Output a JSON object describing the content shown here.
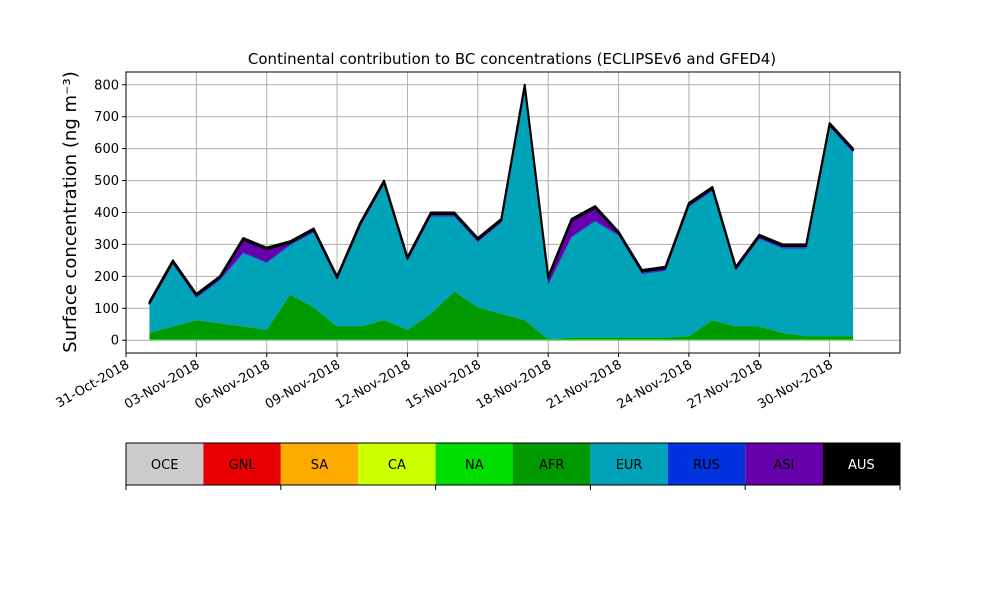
{
  "chart_data": {
    "type": "stacked_area",
    "title": "Continental contribution to BC concentrations (ECLIPSEv6 and GFED4)",
    "y_label": "Surface concentration (ng m⁻³)",
    "x": [
      "2018-11-01",
      "2018-11-02",
      "2018-11-03",
      "2018-11-04",
      "2018-11-05",
      "2018-11-06",
      "2018-11-07",
      "2018-11-08",
      "2018-11-09",
      "2018-11-10",
      "2018-11-11",
      "2018-11-12",
      "2018-11-13",
      "2018-11-14",
      "2018-11-15",
      "2018-11-16",
      "2018-11-17",
      "2018-11-18",
      "2018-11-19",
      "2018-11-20",
      "2018-11-21",
      "2018-11-22",
      "2018-11-23",
      "2018-11-24",
      "2018-11-25",
      "2018-11-26",
      "2018-11-27",
      "2018-11-28",
      "2018-11-29",
      "2018-11-30",
      "2018-12-01"
    ],
    "series": [
      {
        "name": "OCE",
        "color": "#cccccc",
        "values": [
          0,
          0,
          0,
          0,
          0,
          0,
          0,
          0,
          0,
          0,
          0,
          0,
          0,
          0,
          0,
          0,
          0,
          0,
          0,
          0,
          0,
          0,
          0,
          0,
          0,
          0,
          0,
          0,
          0,
          0,
          0
        ]
      },
      {
        "name": "GNL",
        "color": "#e60000",
        "values": [
          0,
          0,
          0,
          0,
          0,
          0,
          0,
          0,
          0,
          0,
          0,
          0,
          0,
          0,
          0,
          0,
          0,
          0,
          0,
          0,
          0,
          0,
          0,
          0,
          0,
          0,
          0,
          0,
          0,
          0,
          0
        ]
      },
      {
        "name": "SA",
        "color": "#ffaa00",
        "values": [
          0,
          0,
          0,
          0,
          0,
          0,
          0,
          0,
          0,
          0,
          0,
          0,
          0,
          0,
          0,
          0,
          0,
          0,
          0,
          0,
          0,
          0,
          0,
          0,
          0,
          0,
          0,
          0,
          0,
          0,
          0
        ]
      },
      {
        "name": "CA",
        "color": "#ccff00",
        "values": [
          0,
          0,
          0,
          0,
          0,
          0,
          0,
          0,
          0,
          0,
          0,
          0,
          0,
          0,
          0,
          0,
          0,
          0,
          0,
          0,
          0,
          0,
          0,
          0,
          0,
          0,
          0,
          0,
          0,
          0,
          0
        ]
      },
      {
        "name": "NA",
        "color": "#00dd00",
        "values": [
          3,
          3,
          3,
          3,
          3,
          3,
          3,
          3,
          3,
          3,
          3,
          3,
          3,
          3,
          3,
          3,
          3,
          3,
          3,
          3,
          3,
          3,
          3,
          3,
          3,
          3,
          3,
          3,
          3,
          3,
          3
        ]
      },
      {
        "name": "AFR",
        "color": "#009900",
        "values": [
          20,
          40,
          60,
          50,
          40,
          30,
          140,
          100,
          40,
          40,
          60,
          30,
          80,
          150,
          100,
          80,
          60,
          0,
          5,
          5,
          5,
          5,
          5,
          10,
          60,
          40,
          40,
          20,
          10,
          10,
          10
        ]
      },
      {
        "name": "EUR",
        "color": "#00a3b8",
        "values": [
          84,
          194,
          69,
          134,
          229,
          209,
          154,
          234,
          144,
          314,
          424,
          214,
          304,
          234,
          204,
          284,
          724,
          169,
          314,
          364,
          319,
          199,
          209,
          404,
          404,
          174,
          274,
          264,
          274,
          654,
          574
        ]
      },
      {
        "name": "RUS",
        "color": "#0033dd",
        "values": [
          3,
          3,
          3,
          3,
          3,
          3,
          3,
          3,
          3,
          3,
          3,
          3,
          3,
          3,
          3,
          3,
          3,
          3,
          3,
          3,
          3,
          3,
          3,
          3,
          3,
          3,
          3,
          3,
          3,
          3,
          3
        ]
      },
      {
        "name": "ASI",
        "color": "#6600aa",
        "values": [
          5,
          5,
          5,
          5,
          40,
          40,
          5,
          5,
          5,
          5,
          5,
          5,
          5,
          5,
          5,
          5,
          5,
          20,
          50,
          40,
          5,
          5,
          5,
          5,
          5,
          5,
          5,
          5,
          5,
          5,
          5
        ]
      },
      {
        "name": "AUS",
        "color": "#000000",
        "values": [
          5,
          5,
          5,
          5,
          5,
          5,
          5,
          5,
          5,
          5,
          5,
          5,
          5,
          5,
          5,
          5,
          5,
          5,
          5,
          5,
          5,
          5,
          5,
          5,
          5,
          5,
          5,
          5,
          5,
          5,
          5
        ]
      }
    ],
    "xlim": [
      "2018-10-31",
      "2018-12-03"
    ],
    "xticks": [
      {
        "value": "2018-10-31",
        "label": "31-Oct-2018"
      },
      {
        "value": "2018-11-03",
        "label": "03-Nov-2018"
      },
      {
        "value": "2018-11-06",
        "label": "06-Nov-2018"
      },
      {
        "value": "2018-11-09",
        "label": "09-Nov-2018"
      },
      {
        "value": "2018-11-12",
        "label": "12-Nov-2018"
      },
      {
        "value": "2018-11-15",
        "label": "15-Nov-2018"
      },
      {
        "value": "2018-11-18",
        "label": "18-Nov-2018"
      },
      {
        "value": "2018-11-21",
        "label": "21-Nov-2018"
      },
      {
        "value": "2018-11-24",
        "label": "24-Nov-2018"
      },
      {
        "value": "2018-11-27",
        "label": "27-Nov-2018"
      },
      {
        "value": "2018-11-30",
        "label": "30-Nov-2018"
      }
    ],
    "ylim": [
      -40,
      840
    ],
    "yticks": [
      0,
      100,
      200,
      300,
      400,
      500,
      600,
      700,
      800
    ],
    "grid": true
  }
}
